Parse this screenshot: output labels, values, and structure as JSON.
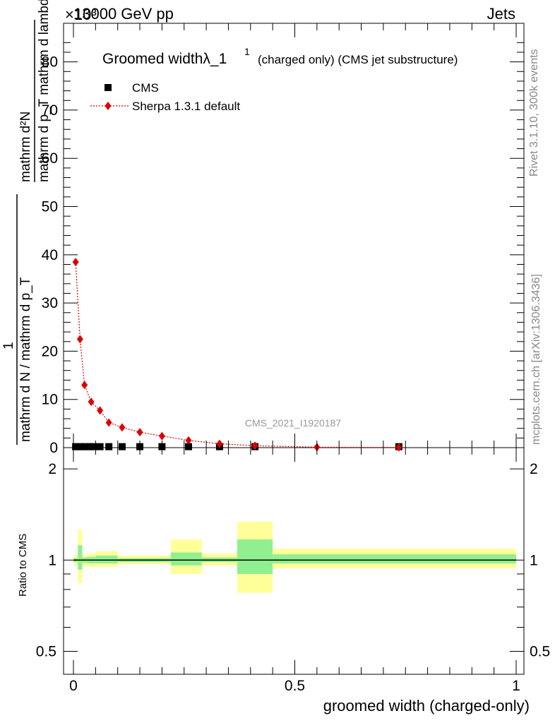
{
  "header": {
    "energy": "13000 GeV pp",
    "process": "Jets",
    "exponent": "×10³"
  },
  "side_labels": {
    "rivet": "Rivet 3.1.10,  300k events",
    "mcplots": "mcplots.cern.ch [arXiv:1306.3436]"
  },
  "chart_data": [
    {
      "type": "scatter",
      "title": "Groomed widthλ_1¹ (charged only) (CMS jet substructure)",
      "title_main": "Groomed widthλ_1",
      "title_sup": "1",
      "title_rest": "(charged only) (CMS jet substructure)",
      "watermark": "CMS_2021_I1920187",
      "xlabel": "groomed width (charged-only)",
      "ylabel_numerator": "mathrm d²N",
      "ylabel_denominator": "mathrm d p_T mathrm d lambda",
      "ylabel_prefix_num": "1",
      "ylabel_prefix_den": "mathrm d N / mathrm d p_T",
      "xlim": [
        0,
        1
      ],
      "ylim": [
        0,
        88
      ],
      "y_scale_factor": 1000,
      "xticks": [
        "0",
        "0.5",
        "1"
      ],
      "yticks": [
        "0",
        "10",
        "20",
        "30",
        "40",
        "50",
        "60",
        "70",
        "80"
      ],
      "legend_position": "top-left",
      "series": [
        {
          "name": "CMS",
          "color": "#000000",
          "marker": "square",
          "x": [
            0.005,
            0.015,
            0.025,
            0.035,
            0.045,
            0.06,
            0.08,
            0.11,
            0.15,
            0.2,
            0.26,
            0.33,
            0.41,
            0.735
          ],
          "y": [
            0.2,
            0.2,
            0.2,
            0.2,
            0.2,
            0.2,
            0.2,
            0.2,
            0.2,
            0.2,
            0.2,
            0.2,
            0.2,
            0.2
          ]
        },
        {
          "name": "Sherpa 1.3.1 default",
          "color": "#dd0000",
          "marker": "diamond",
          "line": "dotted",
          "x": [
            0.005,
            0.015,
            0.025,
            0.04,
            0.06,
            0.08,
            0.11,
            0.15,
            0.2,
            0.26,
            0.33,
            0.41,
            0.55,
            0.735
          ],
          "y": [
            38.5,
            22.5,
            13.0,
            9.5,
            7.7,
            5.2,
            4.2,
            3.2,
            2.4,
            1.5,
            0.8,
            0.4,
            0.1,
            0.05
          ]
        }
      ]
    },
    {
      "type": "area",
      "ylabel": "Ratio to CMS",
      "xlim": [
        0,
        1
      ],
      "ylim": [
        0.42,
        2.35
      ],
      "y_scale": "log",
      "yticks": [
        "0.5",
        "1",
        "2"
      ],
      "reference_line": 1,
      "band_colors": {
        "inner": "#90f090",
        "outer": "#ffff99"
      },
      "bins": [
        {
          "x0": 0.0,
          "x1": 0.01,
          "inner": [
            0.985,
            1.015
          ],
          "outer": [
            0.96,
            1.04
          ]
        },
        {
          "x0": 0.01,
          "x1": 0.02,
          "inner": [
            0.93,
            1.12
          ],
          "outer": [
            0.84,
            1.26
          ]
        },
        {
          "x0": 0.02,
          "x1": 0.03,
          "inner": [
            0.98,
            1.02
          ],
          "outer": [
            0.96,
            1.04
          ]
        },
        {
          "x0": 0.03,
          "x1": 0.05,
          "inner": [
            0.975,
            1.025
          ],
          "outer": [
            0.95,
            1.05
          ]
        },
        {
          "x0": 0.05,
          "x1": 0.1,
          "inner": [
            0.975,
            1.035
          ],
          "outer": [
            0.95,
            1.07
          ]
        },
        {
          "x0": 0.1,
          "x1": 0.22,
          "inner": [
            0.985,
            1.015
          ],
          "outer": [
            0.97,
            1.035
          ]
        },
        {
          "x0": 0.22,
          "x1": 0.29,
          "inner": [
            0.96,
            1.06
          ],
          "outer": [
            0.9,
            1.17
          ]
        },
        {
          "x0": 0.29,
          "x1": 0.37,
          "inner": [
            0.985,
            1.02
          ],
          "outer": [
            0.96,
            1.05
          ]
        },
        {
          "x0": 0.37,
          "x1": 0.45,
          "inner": [
            0.9,
            1.17
          ],
          "outer": [
            0.78,
            1.34
          ]
        },
        {
          "x0": 0.45,
          "x1": 1.0,
          "inner": [
            0.975,
            1.045
          ],
          "outer": [
            0.94,
            1.09
          ]
        }
      ]
    }
  ]
}
